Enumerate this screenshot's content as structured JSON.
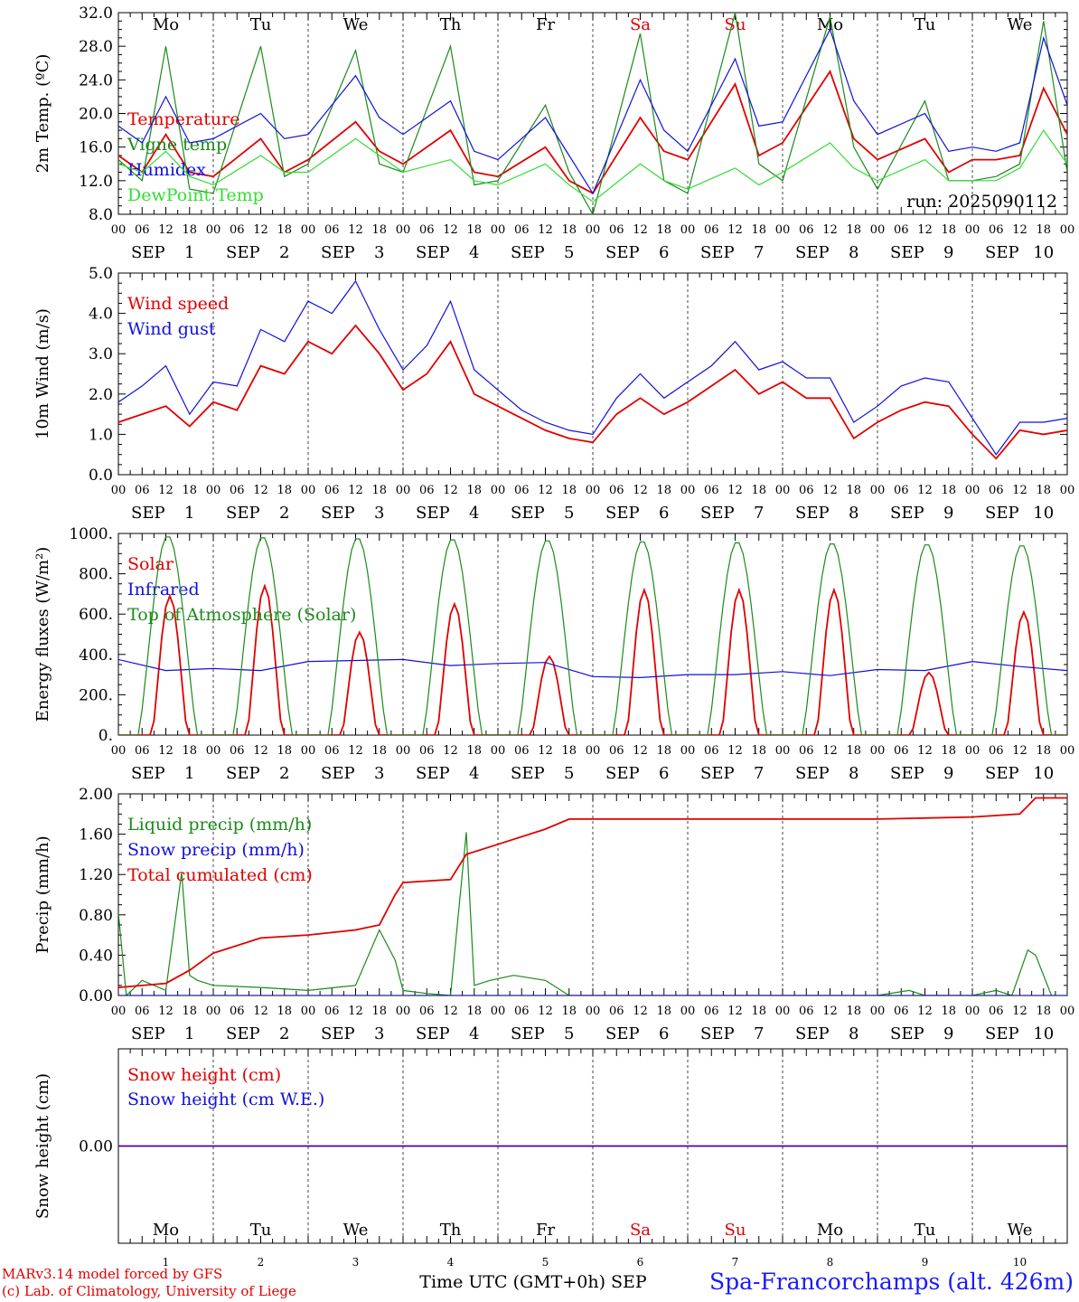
{
  "colors": {
    "red": "#e00000",
    "green": "#1a8a1a",
    "lightgreen": "#33dd33",
    "blue": "#1010dd",
    "grid": "#444444",
    "axis": "#000000"
  },
  "days": [
    "1",
    "2",
    "3",
    "4",
    "5",
    "6",
    "7",
    "8",
    "9",
    "10"
  ],
  "month": "SEP",
  "weekdays": [
    "Mo",
    "Tu",
    "We",
    "Th",
    "Fr",
    "Sa",
    "Su",
    "Mo",
    "Tu",
    "We"
  ],
  "weekend_color": {
    "Sa": "#e00000",
    "Su": "#e00000"
  },
  "hour_ticks": [
    "00",
    "06",
    "12",
    "18"
  ],
  "last_hour_tick": "00",
  "run_label": "run: 2025090112",
  "xaxis_title": "Time UTC (GMT+0h) SEP",
  "credits": [
    "MARv3.14 model forced by GFS",
    "(c) Lab. of Climatology, University of Liege"
  ],
  "station": "Spa-Francorchamps (alt. 426m)",
  "chart_data": [
    {
      "type": "line",
      "ylabel": "2m Temp. (ºC)",
      "ylim": [
        8,
        32
      ],
      "yticks": [
        "8.0",
        "12.0",
        "16.0",
        "20.0",
        "24.0",
        "28.0",
        "32.0"
      ],
      "x_unit": "hours since SEP 1 00 UTC",
      "series": [
        {
          "name": "Temperature",
          "color": "red",
          "x": [
            0,
            6,
            12,
            18,
            24,
            36,
            42,
            48,
            60,
            66,
            72,
            84,
            90,
            96,
            108,
            114,
            120,
            132,
            138,
            144,
            156,
            162,
            168,
            180,
            186,
            192,
            204,
            210,
            216,
            222,
            228,
            234,
            240
          ],
          "y": [
            15,
            13,
            17.5,
            13,
            12.5,
            17,
            13,
            14.5,
            19,
            15.5,
            14,
            18,
            13,
            12.5,
            16,
            12,
            10.5,
            19.5,
            15.5,
            14.5,
            23.5,
            15,
            16.5,
            25,
            17,
            14.5,
            17,
            13,
            14.5,
            14.5,
            15,
            23,
            17.5
          ]
        },
        {
          "name": "Vigne temp",
          "color": "green",
          "x": [
            0,
            6,
            12,
            18,
            24,
            36,
            42,
            48,
            60,
            66,
            72,
            84,
            90,
            96,
            108,
            114,
            120,
            132,
            138,
            144,
            156,
            162,
            168,
            180,
            186,
            192,
            204,
            210,
            216,
            222,
            228,
            234,
            240
          ],
          "y": [
            14.5,
            12,
            28,
            11,
            10.5,
            28,
            12.5,
            14,
            27.5,
            14,
            13,
            28,
            11.5,
            12,
            21,
            13,
            8,
            29.5,
            12,
            10.5,
            32,
            14,
            12,
            31.5,
            16,
            11,
            21.5,
            12,
            12,
            12.5,
            14,
            31,
            13
          ]
        },
        {
          "name": "Humidex",
          "color": "blue",
          "x": [
            0,
            6,
            12,
            18,
            24,
            36,
            42,
            48,
            60,
            66,
            72,
            84,
            90,
            96,
            108,
            114,
            120,
            132,
            138,
            144,
            156,
            162,
            168,
            180,
            186,
            192,
            204,
            210,
            216,
            222,
            228,
            234,
            240
          ],
          "y": [
            18.5,
            16.5,
            22,
            16.5,
            17,
            20,
            17,
            17.5,
            24.5,
            19.5,
            17.5,
            21.5,
            15.5,
            14.5,
            19.5,
            15,
            10.5,
            24,
            18,
            15.5,
            26.5,
            18.5,
            19,
            30,
            21.5,
            17.5,
            20,
            15.5,
            16,
            15.5,
            16.5,
            29,
            21
          ]
        },
        {
          "name": "DewPoint Temp",
          "color": "lightgreen",
          "x": [
            0,
            6,
            12,
            18,
            24,
            36,
            42,
            48,
            60,
            66,
            72,
            84,
            90,
            96,
            108,
            114,
            120,
            132,
            138,
            144,
            156,
            162,
            168,
            180,
            186,
            192,
            204,
            210,
            216,
            222,
            228,
            234,
            240
          ],
          "y": [
            14,
            13,
            15.5,
            12.5,
            11.5,
            15,
            13,
            13,
            17,
            15,
            13,
            14.5,
            12,
            11.5,
            14,
            11.5,
            9.5,
            14,
            12,
            11,
            13.5,
            11.5,
            13,
            16.5,
            13.5,
            12,
            14.5,
            12,
            12,
            12,
            13.5,
            18,
            14
          ]
        }
      ]
    },
    {
      "type": "line",
      "ylabel": "10m Wind (m/s)",
      "ylim": [
        0,
        5
      ],
      "yticks": [
        "0.0",
        "1.0",
        "2.0",
        "3.0",
        "4.0",
        "5.0"
      ],
      "x_unit": "hours since SEP 1 00 UTC",
      "series": [
        {
          "name": "Wind speed",
          "color": "red",
          "x": [
            0,
            6,
            12,
            18,
            24,
            30,
            36,
            42,
            48,
            54,
            60,
            66,
            72,
            78,
            84,
            90,
            96,
            102,
            108,
            114,
            120,
            126,
            132,
            138,
            144,
            150,
            156,
            162,
            168,
            174,
            180,
            186,
            192,
            198,
            204,
            210,
            216,
            222,
            228,
            234,
            240
          ],
          "y": [
            1.3,
            1.5,
            1.7,
            1.2,
            1.8,
            1.6,
            2.7,
            2.5,
            3.3,
            3.0,
            3.7,
            3.0,
            2.1,
            2.5,
            3.3,
            2.0,
            1.7,
            1.4,
            1.1,
            0.9,
            0.8,
            1.5,
            1.9,
            1.5,
            1.8,
            2.2,
            2.6,
            2.0,
            2.3,
            1.9,
            1.9,
            0.9,
            1.3,
            1.6,
            1.8,
            1.7,
            1.0,
            0.4,
            1.1,
            1.0,
            1.1
          ]
        },
        {
          "name": "Wind gust",
          "color": "blue",
          "x": [
            0,
            6,
            12,
            18,
            24,
            30,
            36,
            42,
            48,
            54,
            60,
            66,
            72,
            78,
            84,
            90,
            96,
            102,
            108,
            114,
            120,
            126,
            132,
            138,
            144,
            150,
            156,
            162,
            168,
            174,
            180,
            186,
            192,
            198,
            204,
            210,
            216,
            222,
            228,
            234,
            240
          ],
          "y": [
            1.8,
            2.2,
            2.7,
            1.5,
            2.3,
            2.2,
            3.6,
            3.3,
            4.3,
            4.0,
            4.8,
            3.6,
            2.6,
            3.2,
            4.3,
            2.6,
            2.1,
            1.6,
            1.3,
            1.1,
            1.0,
            1.9,
            2.5,
            1.9,
            2.3,
            2.7,
            3.3,
            2.6,
            2.8,
            2.4,
            2.4,
            1.3,
            1.7,
            2.2,
            2.4,
            2.3,
            1.4,
            0.5,
            1.3,
            1.3,
            1.4
          ]
        }
      ]
    },
    {
      "type": "line",
      "ylabel": "Energy fluxes (W/m²)",
      "ylim": [
        0,
        1000
      ],
      "yticks": [
        "0.",
        "200.",
        "400.",
        "600.",
        "800.",
        "1000."
      ],
      "x_unit": "hours since SEP 1 00 UTC",
      "series": [
        {
          "name": "Solar",
          "color": "red",
          "peak_hour": 13,
          "peaks": [
            690,
            740,
            510,
            650,
            390,
            720,
            720,
            720,
            310,
            610
          ]
        },
        {
          "name": "Infrared",
          "color": "blue",
          "x": [
            0,
            12,
            24,
            36,
            48,
            60,
            72,
            84,
            96,
            108,
            120,
            132,
            144,
            156,
            168,
            180,
            192,
            204,
            216,
            228,
            240
          ],
          "y": [
            375,
            320,
            330,
            320,
            365,
            370,
            375,
            345,
            355,
            360,
            290,
            285,
            300,
            300,
            315,
            295,
            325,
            320,
            365,
            340,
            320
          ]
        },
        {
          "name": "Top of Atmosphere (Solar)",
          "color": "green",
          "peak_hour": 12.5,
          "peaks": [
            990,
            985,
            980,
            975,
            970,
            965,
            960,
            955,
            950,
            945
          ]
        }
      ]
    },
    {
      "type": "line",
      "ylabel": "Precip (mm/h)",
      "ylim": [
        0,
        2
      ],
      "yticks": [
        "0.00",
        "0.40",
        "0.80",
        "1.20",
        "1.60",
        "2.00"
      ],
      "x_unit": "hours since SEP 1 00 UTC",
      "series": [
        {
          "name": "Liquid precip (mm/h)",
          "color": "green",
          "x": [
            0,
            2,
            6,
            12,
            16,
            18,
            20,
            24,
            36,
            48,
            60,
            66,
            70,
            72,
            78,
            84,
            88,
            90,
            94,
            100,
            108,
            114,
            120,
            180,
            192,
            200,
            204,
            216,
            222,
            226,
            230,
            232,
            236
          ],
          "y": [
            0.82,
            0.0,
            0.15,
            0.05,
            1.22,
            0.2,
            0.15,
            0.1,
            0.08,
            0.05,
            0.1,
            0.65,
            0.35,
            0.05,
            0.02,
            0.0,
            1.62,
            0.1,
            0.15,
            0.2,
            0.15,
            0.0,
            0.0,
            0.0,
            0.0,
            0.05,
            0.0,
            0.0,
            0.05,
            0.0,
            0.45,
            0.4,
            0.0
          ]
        },
        {
          "name": "Snow precip (mm/h)",
          "color": "blue",
          "x": [
            0,
            240
          ],
          "y": [
            0,
            0
          ]
        },
        {
          "name": "Total cumulated (cm)",
          "color": "red",
          "x": [
            0,
            12,
            18,
            24,
            36,
            48,
            60,
            66,
            70,
            72,
            84,
            88,
            96,
            108,
            114,
            180,
            192,
            216,
            228,
            232,
            240
          ],
          "y": [
            0.08,
            0.12,
            0.25,
            0.42,
            0.57,
            0.6,
            0.65,
            0.7,
            1.0,
            1.12,
            1.15,
            1.4,
            1.5,
            1.65,
            1.75,
            1.75,
            1.75,
            1.77,
            1.8,
            1.96,
            1.96
          ]
        }
      ]
    },
    {
      "type": "line",
      "ylabel": "Snow height (cm)",
      "ylim": [
        -1,
        1
      ],
      "yticks": [
        "0.00"
      ],
      "x_unit": "hours since SEP 1 00 UTC",
      "series": [
        {
          "name": "Snow height (cm)",
          "color": "red",
          "x": [
            0,
            240
          ],
          "y": [
            0,
            0
          ]
        },
        {
          "name": "Snow height (cm W.E.)",
          "color": "blue",
          "x": [
            0,
            240
          ],
          "y": [
            0,
            0
          ]
        }
      ]
    }
  ]
}
